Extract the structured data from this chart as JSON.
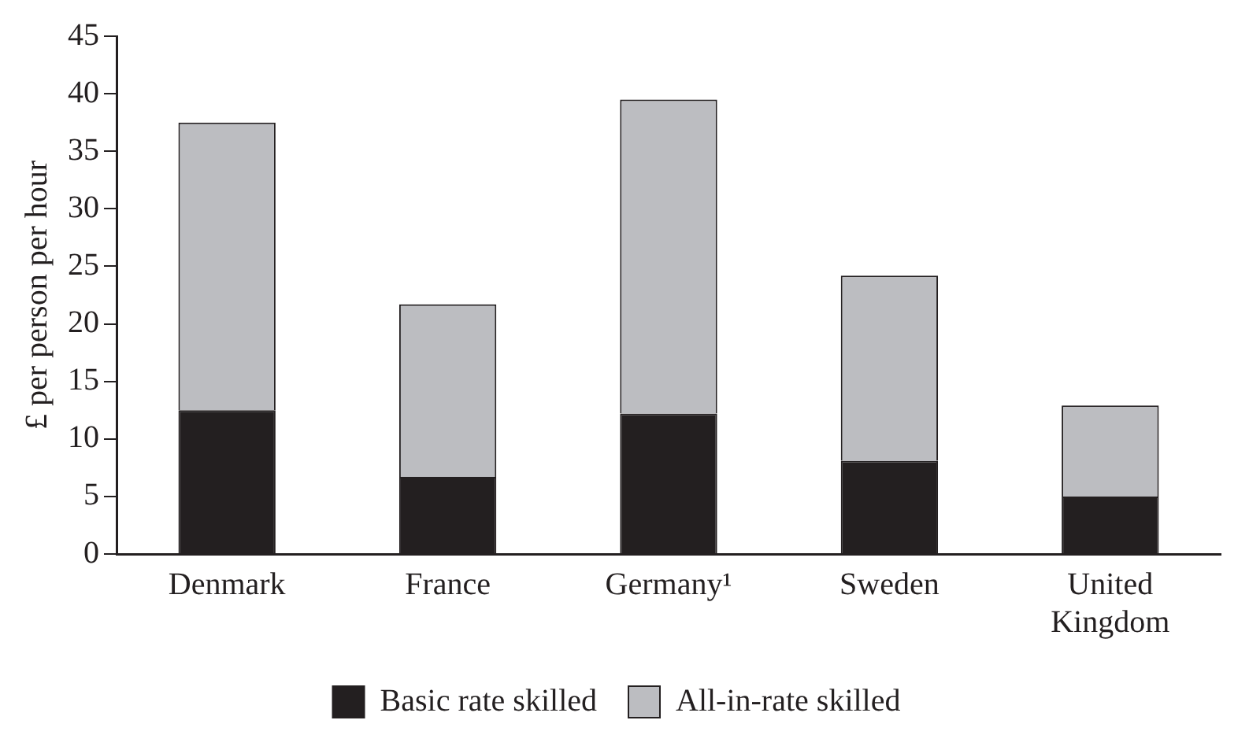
{
  "chart_data": {
    "type": "bar",
    "ylabel": "£ per person per hour",
    "categories": [
      "Denmark",
      "France",
      "Germany¹",
      "Sweden",
      "United Kingdom"
    ],
    "stacked": true,
    "series": [
      {
        "name": "Basic rate skilled",
        "color": "#231f20",
        "values": [
          12.5,
          6.7,
          12.2,
          8.1,
          5.0
        ]
      },
      {
        "name": "All-in-rate skilled",
        "color": "#bcbdc1",
        "values": [
          25.0,
          15.0,
          27.3,
          16.1,
          7.9
        ]
      }
    ],
    "ylim": [
      0,
      45
    ],
    "yticks": [
      0,
      5,
      10,
      15,
      20,
      25,
      30,
      35,
      40,
      45
    ],
    "grid": false,
    "legend": "bottom"
  }
}
